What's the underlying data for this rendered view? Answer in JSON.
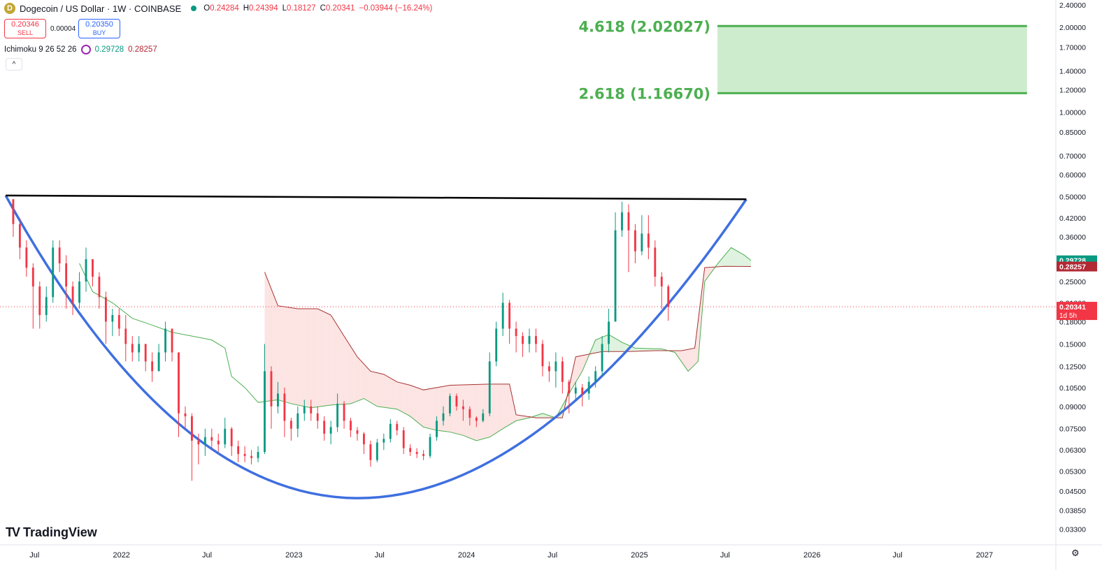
{
  "header": {
    "title": "Dogecoin / US Dollar · 1W · COINBASE",
    "coin_icon": "dogecoin-icon",
    "market_status_color": "#089981",
    "ohlc": [
      {
        "key": "O",
        "value": "0.24284"
      },
      {
        "key": "H",
        "value": "0.24394"
      },
      {
        "key": "L",
        "value": "0.18127"
      },
      {
        "key": "C",
        "value": "0.20341"
      },
      {
        "key": "",
        "value": "−0.03944 (−16.24%)"
      }
    ]
  },
  "trade": {
    "sell_price": "0.20346",
    "sell_label": "SELL",
    "spread": "0.00004",
    "buy_price": "0.20350",
    "buy_label": "BUY"
  },
  "indicator": {
    "name": "Ichimoku 9 26 52 26",
    "value1": "0.29728",
    "value1_color": "#089981",
    "value2": "0.28257",
    "value2_color": "#b22833"
  },
  "collapse_icon": "chevron-up-icon",
  "brand": {
    "logo": "TV",
    "name": "TradingView"
  },
  "settings_icon": "gear-icon",
  "chart_data": {
    "type": "candlestick",
    "scale": "log",
    "ylim": [
      0.029,
      2.5
    ],
    "x_range": [
      "2021-04-19",
      "2027-06-01"
    ],
    "y_ticks": [
      "2.40000",
      "2.00000",
      "1.70000",
      "1.40000",
      "1.20000",
      "1.00000",
      "0.85000",
      "0.70000",
      "0.60000",
      "0.50000",
      "0.42000",
      "0.36000",
      "0.30000",
      "0.25000",
      "0.21000",
      "0.18000",
      "0.15000",
      "0.12500",
      "0.10500",
      "0.09000",
      "0.07500",
      "0.06300",
      "0.05300",
      "0.04500",
      "0.03850",
      "0.03300"
    ],
    "x_ticks": [
      {
        "label": "Jul",
        "date": "2021-07-01"
      },
      {
        "label": "2022",
        "date": "2022-01-01"
      },
      {
        "label": "Jul",
        "date": "2022-07-01"
      },
      {
        "label": "2023",
        "date": "2023-01-01"
      },
      {
        "label": "Jul",
        "date": "2023-07-01"
      },
      {
        "label": "2024",
        "date": "2024-01-01"
      },
      {
        "label": "Jul",
        "date": "2024-07-01"
      },
      {
        "label": "2025",
        "date": "2025-01-01"
      },
      {
        "label": "Jul",
        "date": "2025-07-01"
      },
      {
        "label": "2026",
        "date": "2026-01-01"
      },
      {
        "label": "Jul",
        "date": "2026-07-01"
      },
      {
        "label": "2027",
        "date": "2027-01-01"
      }
    ],
    "last_price": {
      "value": 0.20341,
      "label": "0.20341",
      "countdown": "1d 5h",
      "color": "#f23645"
    },
    "price_labels": [
      {
        "value": 0.29728,
        "label": "0.29728",
        "color": "#089981"
      },
      {
        "value": 0.28257,
        "label": "0.28257",
        "color": "#b22833"
      }
    ],
    "targets": [
      {
        "label": "4.618 (2.02027)",
        "value": 2.02027
      },
      {
        "label": "2.618 (1.16670)",
        "value": 1.1667
      }
    ],
    "target_zone": {
      "from_date": "2025-06-15",
      "to_date": "2027-04-01",
      "low": 1.1667,
      "high": 2.02027,
      "fill": "#cdeccd",
      "line": "#4caf50"
    },
    "resistance_line": {
      "from": [
        "2021-05-01",
        0.505
      ],
      "to": [
        "2025-08-15",
        0.49
      ],
      "color": "#000000"
    },
    "cup_curve": {
      "points": [
        [
          "2021-05-01",
          0.505
        ],
        [
          "2023-05-15",
          0.0425
        ],
        [
          "2025-08-15",
          0.49
        ]
      ],
      "color": "#3f6fe0"
    },
    "candles": [
      [
        "2021-05-17",
        0.49,
        0.4,
        0.49,
        0.36
      ],
      [
        "2021-05-31",
        0.4,
        0.33,
        0.42,
        0.3
      ],
      [
        "2021-06-14",
        0.33,
        0.28,
        0.35,
        0.26
      ],
      [
        "2021-06-28",
        0.28,
        0.24,
        0.29,
        0.17
      ],
      [
        "2021-07-12",
        0.24,
        0.19,
        0.25,
        0.17
      ],
      [
        "2021-07-26",
        0.19,
        0.22,
        0.24,
        0.18
      ],
      [
        "2021-08-09",
        0.22,
        0.33,
        0.35,
        0.21
      ],
      [
        "2021-08-23",
        0.33,
        0.29,
        0.35,
        0.27
      ],
      [
        "2021-09-06",
        0.29,
        0.24,
        0.31,
        0.2
      ],
      [
        "2021-09-20",
        0.24,
        0.21,
        0.25,
        0.19
      ],
      [
        "2021-10-04",
        0.21,
        0.25,
        0.27,
        0.2
      ],
      [
        "2021-10-18",
        0.25,
        0.3,
        0.33,
        0.23
      ],
      [
        "2021-11-01",
        0.3,
        0.26,
        0.3,
        0.24
      ],
      [
        "2021-11-15",
        0.26,
        0.22,
        0.27,
        0.2
      ],
      [
        "2021-11-29",
        0.22,
        0.18,
        0.23,
        0.15
      ],
      [
        "2021-12-13",
        0.18,
        0.19,
        0.2,
        0.16
      ],
      [
        "2021-12-27",
        0.19,
        0.17,
        0.2,
        0.16
      ],
      [
        "2022-01-10",
        0.17,
        0.15,
        0.19,
        0.13
      ],
      [
        "2022-01-24",
        0.15,
        0.14,
        0.16,
        0.13
      ],
      [
        "2022-02-07",
        0.14,
        0.15,
        0.16,
        0.13
      ],
      [
        "2022-02-21",
        0.15,
        0.13,
        0.15,
        0.12
      ],
      [
        "2022-03-07",
        0.13,
        0.12,
        0.14,
        0.11
      ],
      [
        "2022-03-21",
        0.12,
        0.14,
        0.15,
        0.12
      ],
      [
        "2022-04-04",
        0.14,
        0.17,
        0.18,
        0.13
      ],
      [
        "2022-04-18",
        0.17,
        0.14,
        0.17,
        0.13
      ],
      [
        "2022-05-02",
        0.14,
        0.085,
        0.14,
        0.07
      ],
      [
        "2022-05-16",
        0.085,
        0.083,
        0.09,
        0.075
      ],
      [
        "2022-05-30",
        0.083,
        0.068,
        0.085,
        0.049
      ],
      [
        "2022-06-13",
        0.068,
        0.066,
        0.072,
        0.056
      ],
      [
        "2022-06-27",
        0.066,
        0.07,
        0.075,
        0.06
      ],
      [
        "2022-07-11",
        0.07,
        0.068,
        0.075,
        0.063
      ],
      [
        "2022-07-25",
        0.068,
        0.066,
        0.072,
        0.062
      ],
      [
        "2022-08-08",
        0.066,
        0.075,
        0.082,
        0.064
      ],
      [
        "2022-08-22",
        0.075,
        0.065,
        0.076,
        0.06
      ],
      [
        "2022-09-05",
        0.065,
        0.061,
        0.068,
        0.057
      ],
      [
        "2022-09-19",
        0.061,
        0.06,
        0.065,
        0.057
      ],
      [
        "2022-10-03",
        0.06,
        0.059,
        0.063,
        0.056
      ],
      [
        "2022-10-17",
        0.059,
        0.062,
        0.065,
        0.057
      ],
      [
        "2022-10-31",
        0.062,
        0.12,
        0.15,
        0.061
      ],
      [
        "2022-11-14",
        0.12,
        0.09,
        0.125,
        0.075
      ],
      [
        "2022-11-28",
        0.09,
        0.1,
        0.11,
        0.085
      ],
      [
        "2022-12-12",
        0.1,
        0.08,
        0.105,
        0.07
      ],
      [
        "2022-12-26",
        0.08,
        0.075,
        0.082,
        0.068
      ],
      [
        "2023-01-09",
        0.075,
        0.085,
        0.09,
        0.07
      ],
      [
        "2023-01-23",
        0.085,
        0.09,
        0.095,
        0.08
      ],
      [
        "2023-02-06",
        0.09,
        0.085,
        0.095,
        0.08
      ],
      [
        "2023-02-20",
        0.085,
        0.08,
        0.09,
        0.075
      ],
      [
        "2023-03-06",
        0.08,
        0.072,
        0.083,
        0.068
      ],
      [
        "2023-03-20",
        0.072,
        0.076,
        0.08,
        0.066
      ],
      [
        "2023-04-03",
        0.076,
        0.092,
        0.1,
        0.073
      ],
      [
        "2023-04-17",
        0.092,
        0.08,
        0.094,
        0.075
      ],
      [
        "2023-05-01",
        0.08,
        0.074,
        0.082,
        0.07
      ],
      [
        "2023-05-15",
        0.074,
        0.072,
        0.076,
        0.068
      ],
      [
        "2023-05-29",
        0.072,
        0.066,
        0.073,
        0.061
      ],
      [
        "2023-06-12",
        0.066,
        0.058,
        0.068,
        0.055
      ],
      [
        "2023-06-26",
        0.058,
        0.067,
        0.069,
        0.057
      ],
      [
        "2023-07-10",
        0.067,
        0.069,
        0.072,
        0.063
      ],
      [
        "2023-07-24",
        0.069,
        0.078,
        0.081,
        0.067
      ],
      [
        "2023-08-07",
        0.078,
        0.074,
        0.08,
        0.071
      ],
      [
        "2023-08-21",
        0.074,
        0.064,
        0.076,
        0.061
      ],
      [
        "2023-09-04",
        0.064,
        0.062,
        0.066,
        0.06
      ],
      [
        "2023-09-18",
        0.062,
        0.061,
        0.064,
        0.059
      ],
      [
        "2023-10-02",
        0.061,
        0.06,
        0.063,
        0.058
      ],
      [
        "2023-10-16",
        0.06,
        0.07,
        0.072,
        0.059
      ],
      [
        "2023-10-30",
        0.07,
        0.08,
        0.083,
        0.068
      ],
      [
        "2023-11-13",
        0.08,
        0.085,
        0.09,
        0.077
      ],
      [
        "2023-11-27",
        0.085,
        0.098,
        0.1,
        0.083
      ],
      [
        "2023-12-11",
        0.098,
        0.09,
        0.1,
        0.087
      ],
      [
        "2023-12-25",
        0.09,
        0.088,
        0.095,
        0.08
      ],
      [
        "2024-01-08",
        0.088,
        0.082,
        0.09,
        0.077
      ],
      [
        "2024-01-22",
        0.082,
        0.08,
        0.083,
        0.076
      ],
      [
        "2024-02-05",
        0.08,
        0.085,
        0.088,
        0.079
      ],
      [
        "2024-02-19",
        0.085,
        0.13,
        0.14,
        0.083
      ],
      [
        "2024-03-04",
        0.13,
        0.17,
        0.18,
        0.125
      ],
      [
        "2024-03-18",
        0.17,
        0.21,
        0.228,
        0.16
      ],
      [
        "2024-04-01",
        0.21,
        0.17,
        0.215,
        0.15
      ],
      [
        "2024-04-15",
        0.17,
        0.16,
        0.18,
        0.14
      ],
      [
        "2024-04-29",
        0.16,
        0.15,
        0.165,
        0.135
      ],
      [
        "2024-05-13",
        0.15,
        0.16,
        0.17,
        0.14
      ],
      [
        "2024-05-27",
        0.16,
        0.15,
        0.17,
        0.14
      ],
      [
        "2024-06-10",
        0.15,
        0.125,
        0.155,
        0.115
      ],
      [
        "2024-06-24",
        0.125,
        0.12,
        0.13,
        0.11
      ],
      [
        "2024-07-08",
        0.12,
        0.13,
        0.14,
        0.105
      ],
      [
        "2024-07-22",
        0.13,
        0.11,
        0.135,
        0.1
      ],
      [
        "2024-08-05",
        0.11,
        0.1,
        0.112,
        0.085
      ],
      [
        "2024-08-19",
        0.1,
        0.105,
        0.11,
        0.095
      ],
      [
        "2024-09-02",
        0.105,
        0.1,
        0.108,
        0.09
      ],
      [
        "2024-09-16",
        0.1,
        0.11,
        0.115,
        0.095
      ],
      [
        "2024-09-30",
        0.11,
        0.12,
        0.125,
        0.105
      ],
      [
        "2024-10-14",
        0.12,
        0.15,
        0.16,
        0.115
      ],
      [
        "2024-10-28",
        0.15,
        0.18,
        0.2,
        0.14
      ],
      [
        "2024-11-11",
        0.18,
        0.38,
        0.44,
        0.18
      ],
      [
        "2024-11-25",
        0.38,
        0.44,
        0.48,
        0.36
      ],
      [
        "2024-12-09",
        0.44,
        0.38,
        0.47,
        0.27
      ],
      [
        "2024-12-23",
        0.38,
        0.32,
        0.4,
        0.29
      ],
      [
        "2025-01-06",
        0.32,
        0.37,
        0.43,
        0.31
      ],
      [
        "2025-01-20",
        0.37,
        0.33,
        0.43,
        0.3
      ],
      [
        "2025-02-03",
        0.33,
        0.26,
        0.35,
        0.24
      ],
      [
        "2025-02-17",
        0.26,
        0.24,
        0.27,
        0.2
      ],
      [
        "2025-03-03",
        0.24,
        0.20341,
        0.24394,
        0.18127
      ]
    ],
    "ichimoku": {
      "tenkan_color": "#b22833",
      "kijun_color": "#b22833",
      "cloud_bull_line": "#4caf50",
      "cloud_bear_line": "#a83232",
      "cloud_bull_fill": "#dff2df",
      "cloud_bear_fill": "#fce4e3",
      "span_a": [
        [
          "2021-10-04",
          0.29
        ],
        [
          "2021-11-01",
          0.23
        ],
        [
          "2021-12-13",
          0.21
        ],
        [
          "2022-01-24",
          0.185
        ],
        [
          "2022-03-07",
          0.175
        ],
        [
          "2022-04-18",
          0.165
        ],
        [
          "2022-05-30",
          0.16
        ],
        [
          "2022-07-11",
          0.155
        ],
        [
          "2022-08-08",
          0.145
        ],
        [
          "2022-08-22",
          0.115
        ],
        [
          "2022-09-19",
          0.105
        ],
        [
          "2022-10-17",
          0.093
        ],
        [
          "2022-11-28",
          0.095
        ],
        [
          "2022-12-26",
          0.092
        ],
        [
          "2023-02-06",
          0.089
        ],
        [
          "2023-03-20",
          0.091
        ],
        [
          "2023-05-01",
          0.092
        ],
        [
          "2023-05-29",
          0.096
        ],
        [
          "2023-06-26",
          0.09
        ],
        [
          "2023-08-07",
          0.088
        ],
        [
          "2023-09-04",
          0.083
        ],
        [
          "2023-10-02",
          0.076
        ],
        [
          "2023-10-30",
          0.074
        ],
        [
          "2023-11-27",
          0.073
        ],
        [
          "2023-12-25",
          0.071
        ],
        [
          "2024-01-22",
          0.068
        ],
        [
          "2024-02-19",
          0.07
        ],
        [
          "2024-03-18",
          0.075
        ],
        [
          "2024-04-15",
          0.08
        ],
        [
          "2024-05-13",
          0.082
        ],
        [
          "2024-06-10",
          0.085
        ],
        [
          "2024-07-08",
          0.082
        ],
        [
          "2024-08-05",
          0.1
        ],
        [
          "2024-09-02",
          0.12
        ],
        [
          "2024-09-30",
          0.155
        ],
        [
          "2024-10-28",
          0.162
        ],
        [
          "2024-11-25",
          0.152
        ],
        [
          "2024-12-23",
          0.145
        ],
        [
          "2025-02-17",
          0.144
        ],
        [
          "2025-03-17",
          0.14
        ],
        [
          "2025-04-14",
          0.12
        ],
        [
          "2025-05-05",
          0.13
        ],
        [
          "2025-05-19",
          0.25
        ],
        [
          "2025-06-16",
          0.29
        ],
        [
          "2025-07-14",
          0.33
        ],
        [
          "2025-08-11",
          0.31
        ],
        [
          "2025-08-25",
          0.297
        ]
      ],
      "span_b": [
        [
          "2022-10-31",
          0.27
        ],
        [
          "2022-11-28",
          0.205
        ],
        [
          "2023-01-09",
          0.2
        ],
        [
          "2023-02-20",
          0.2
        ],
        [
          "2023-03-20",
          0.19
        ],
        [
          "2023-04-17",
          0.16
        ],
        [
          "2023-05-15",
          0.135
        ],
        [
          "2023-06-12",
          0.12
        ],
        [
          "2023-07-10",
          0.117
        ],
        [
          "2023-08-07",
          0.11
        ],
        [
          "2023-09-04",
          0.107
        ],
        [
          "2023-10-02",
          0.103
        ],
        [
          "2023-11-27",
          0.107
        ],
        [
          "2024-02-19",
          0.108
        ],
        [
          "2024-04-01",
          0.108
        ],
        [
          "2024-04-15",
          0.084
        ],
        [
          "2024-05-27",
          0.082
        ],
        [
          "2024-06-10",
          0.082
        ],
        [
          "2024-07-22",
          0.082
        ],
        [
          "2024-08-19",
          0.135
        ],
        [
          "2024-10-14",
          0.141
        ],
        [
          "2024-12-09",
          0.141
        ],
        [
          "2025-02-03",
          0.142
        ],
        [
          "2025-03-31",
          0.142
        ],
        [
          "2025-04-28",
          0.145
        ],
        [
          "2025-05-19",
          0.28
        ],
        [
          "2025-06-30",
          0.283
        ],
        [
          "2025-08-25",
          0.2826
        ]
      ]
    }
  }
}
